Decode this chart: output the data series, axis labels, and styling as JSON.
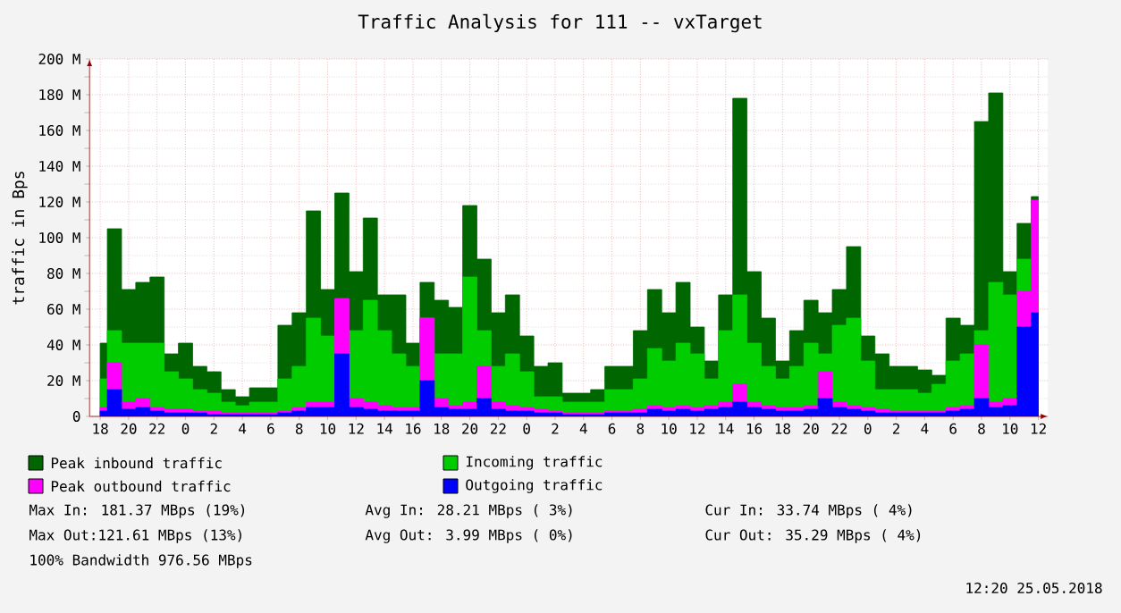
{
  "chart_data": {
    "type": "area",
    "title": "Traffic Analysis for 111 -- vxTarget",
    "ylabel": "traffic in Bps",
    "x": [
      "2018-05-22T18:00",
      "2018-05-22T19:00",
      "2018-05-22T20:00",
      "2018-05-22T21:00",
      "2018-05-22T22:00",
      "2018-05-22T23:00",
      "2018-05-23T00:00",
      "2018-05-23T01:00",
      "2018-05-23T02:00",
      "2018-05-23T03:00",
      "2018-05-23T04:00",
      "2018-05-23T05:00",
      "2018-05-23T06:00",
      "2018-05-23T07:00",
      "2018-05-23T08:00",
      "2018-05-23T09:00",
      "2018-05-23T10:00",
      "2018-05-23T11:00",
      "2018-05-23T12:00",
      "2018-05-23T13:00",
      "2018-05-23T14:00",
      "2018-05-23T15:00",
      "2018-05-23T16:00",
      "2018-05-23T17:00",
      "2018-05-23T18:00",
      "2018-05-23T19:00",
      "2018-05-23T20:00",
      "2018-05-23T21:00",
      "2018-05-23T22:00",
      "2018-05-23T23:00",
      "2018-05-24T00:00",
      "2018-05-24T01:00",
      "2018-05-24T02:00",
      "2018-05-24T03:00",
      "2018-05-24T04:00",
      "2018-05-24T05:00",
      "2018-05-24T06:00",
      "2018-05-24T07:00",
      "2018-05-24T08:00",
      "2018-05-24T09:00",
      "2018-05-24T10:00",
      "2018-05-24T11:00",
      "2018-05-24T12:00",
      "2018-05-24T13:00",
      "2018-05-24T14:00",
      "2018-05-24T15:00",
      "2018-05-24T16:00",
      "2018-05-24T17:00",
      "2018-05-24T18:00",
      "2018-05-24T19:00",
      "2018-05-24T20:00",
      "2018-05-24T21:00",
      "2018-05-24T22:00",
      "2018-05-24T23:00",
      "2018-05-25T00:00",
      "2018-05-25T01:00",
      "2018-05-25T02:00",
      "2018-05-25T03:00",
      "2018-05-25T04:00",
      "2018-05-25T05:00",
      "2018-05-25T06:00",
      "2018-05-25T07:00",
      "2018-05-25T08:00",
      "2018-05-25T09:00",
      "2018-05-25T10:00",
      "2018-05-25T11:00",
      "2018-05-25T12:00"
    ],
    "series": [
      {
        "name": "Peak inbound traffic",
        "color": "#006600",
        "values": [
          41,
          105,
          71,
          75,
          78,
          35,
          41,
          28,
          25,
          15,
          11,
          16,
          16,
          51,
          58,
          115,
          71,
          125,
          81,
          111,
          68,
          68,
          41,
          75,
          65,
          61,
          118,
          88,
          58,
          68,
          45,
          28,
          30,
          13,
          13,
          15,
          28,
          28,
          48,
          71,
          58,
          75,
          50,
          31,
          68,
          178,
          81,
          55,
          31,
          48,
          65,
          58,
          71,
          95,
          45,
          35,
          28,
          28,
          26,
          23,
          55,
          51,
          165,
          181,
          81,
          108,
          123
        ]
      },
      {
        "name": "Incoming traffic",
        "color": "#00cc00",
        "values": [
          21,
          48,
          41,
          41,
          41,
          25,
          21,
          15,
          13,
          8,
          6,
          8,
          8,
          21,
          28,
          55,
          45,
          65,
          48,
          65,
          48,
          35,
          28,
          55,
          35,
          35,
          78,
          48,
          28,
          35,
          25,
          11,
          11,
          8,
          8,
          8,
          15,
          15,
          21,
          38,
          31,
          41,
          35,
          21,
          48,
          68,
          41,
          28,
          21,
          28,
          41,
          35,
          51,
          55,
          31,
          15,
          15,
          15,
          13,
          18,
          31,
          35,
          48,
          75,
          68,
          88,
          81
        ]
      },
      {
        "name": "Peak outbound traffic",
        "color": "#ff00ff",
        "values": [
          5,
          30,
          8,
          10,
          5,
          4,
          4,
          3,
          3,
          2,
          2,
          2,
          2,
          3,
          5,
          8,
          8,
          66,
          10,
          8,
          6,
          5,
          5,
          55,
          10,
          6,
          8,
          28,
          8,
          6,
          5,
          4,
          3,
          2,
          2,
          2,
          3,
          3,
          4,
          6,
          5,
          6,
          5,
          6,
          8,
          18,
          8,
          6,
          5,
          5,
          6,
          25,
          8,
          6,
          5,
          4,
          3,
          3,
          3,
          3,
          5,
          6,
          40,
          8,
          10,
          70,
          121
        ]
      },
      {
        "name": "Outgoing traffic",
        "color": "#0000ff",
        "values": [
          3,
          15,
          4,
          5,
          3,
          2,
          2,
          2,
          1,
          1,
          1,
          1,
          1,
          2,
          3,
          5,
          5,
          35,
          5,
          4,
          3,
          3,
          3,
          20,
          5,
          4,
          4,
          10,
          4,
          3,
          3,
          2,
          2,
          1,
          1,
          1,
          2,
          2,
          2,
          4,
          3,
          4,
          3,
          4,
          5,
          8,
          5,
          4,
          3,
          3,
          4,
          10,
          5,
          4,
          3,
          2,
          2,
          2,
          2,
          2,
          3,
          4,
          10,
          5,
          6,
          50,
          58
        ]
      }
    ],
    "xlim": [
      "2018-05-22T17:15",
      "2018-05-25T12:40"
    ],
    "xticks": [
      {
        "value": "2018-05-22T18:00",
        "label": "18"
      },
      {
        "value": "2018-05-22T20:00",
        "label": "20"
      },
      {
        "value": "2018-05-22T22:00",
        "label": "22"
      },
      {
        "value": "2018-05-23T00:00",
        "label": "0"
      },
      {
        "value": "2018-05-23T02:00",
        "label": "2"
      },
      {
        "value": "2018-05-23T04:00",
        "label": "4"
      },
      {
        "value": "2018-05-23T06:00",
        "label": "6"
      },
      {
        "value": "2018-05-23T08:00",
        "label": "8"
      },
      {
        "value": "2018-05-23T10:00",
        "label": "10"
      },
      {
        "value": "2018-05-23T12:00",
        "label": "12"
      },
      {
        "value": "2018-05-23T14:00",
        "label": "14"
      },
      {
        "value": "2018-05-23T16:00",
        "label": "16"
      },
      {
        "value": "2018-05-23T18:00",
        "label": "18"
      },
      {
        "value": "2018-05-23T20:00",
        "label": "20"
      },
      {
        "value": "2018-05-23T22:00",
        "label": "22"
      },
      {
        "value": "2018-05-24T00:00",
        "label": "0"
      },
      {
        "value": "2018-05-24T02:00",
        "label": "2"
      },
      {
        "value": "2018-05-24T04:00",
        "label": "4"
      },
      {
        "value": "2018-05-24T06:00",
        "label": "6"
      },
      {
        "value": "2018-05-24T08:00",
        "label": "8"
      },
      {
        "value": "2018-05-24T10:00",
        "label": "10"
      },
      {
        "value": "2018-05-24T12:00",
        "label": "12"
      },
      {
        "value": "2018-05-24T14:00",
        "label": "14"
      },
      {
        "value": "2018-05-24T16:00",
        "label": "16"
      },
      {
        "value": "2018-05-24T18:00",
        "label": "18"
      },
      {
        "value": "2018-05-24T20:00",
        "label": "20"
      },
      {
        "value": "2018-05-24T22:00",
        "label": "22"
      },
      {
        "value": "2018-05-25T00:00",
        "label": "0"
      },
      {
        "value": "2018-05-25T02:00",
        "label": "2"
      },
      {
        "value": "2018-05-25T04:00",
        "label": "4"
      },
      {
        "value": "2018-05-25T06:00",
        "label": "6"
      },
      {
        "value": "2018-05-25T08:00",
        "label": "8"
      },
      {
        "value": "2018-05-25T10:00",
        "label": "10"
      },
      {
        "value": "2018-05-25T12:00",
        "label": "12"
      }
    ],
    "ylim": [
      0,
      200
    ],
    "yticks": [
      0,
      {
        "value": 20,
        "label": "20 M"
      },
      {
        "value": 40,
        "label": "40 M"
      },
      {
        "value": 60,
        "label": "60 M"
      },
      {
        "value": 80,
        "label": "80 M"
      },
      {
        "value": 100,
        "label": "100 M"
      },
      {
        "value": 120,
        "label": "120 M"
      },
      {
        "value": 140,
        "label": "140 M"
      },
      {
        "value": 160,
        "label": "160 M"
      },
      {
        "value": 180,
        "label": "180 M"
      },
      {
        "value": 200,
        "label": "200 M"
      }
    ],
    "grid": true,
    "legend": "bottom",
    "annotations": [
      "Max In: 181.37 MBps (19%)",
      "Avg In:  28.21 MBps ( 3%)",
      "Cur In:  33.74 MBps ( 4%)",
      "Max Out:121.61 MBps (13%)",
      "Avg Out:  3.99 MBps ( 0%)",
      "Cur Out: 35.29 MBps ( 4%)",
      "100% Bandwidth 976.56 MBps",
      "12:20 25.05.2018"
    ]
  }
}
